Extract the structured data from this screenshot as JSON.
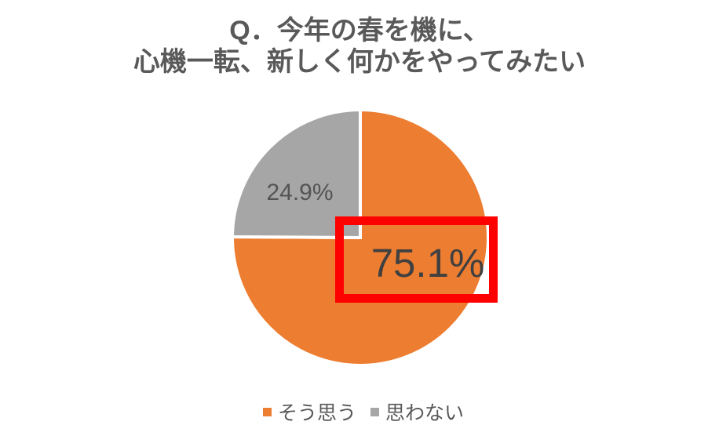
{
  "chart_data": {
    "type": "pie",
    "title": "Q．今年の春を機に、心機一転、新しく何かをやってみたい",
    "title_lines": [
      "Q．今年の春を機に、",
      "心機一転、新しく何かをやってみたい"
    ],
    "slices": [
      {
        "label": "そう思う",
        "value": 75.1,
        "data_label": "75.1%",
        "color": "#ED7D31"
      },
      {
        "label": "思わない",
        "value": 24.9,
        "data_label": "24.9%",
        "color": "#A6A6A6"
      }
    ],
    "start_angle_deg": 0,
    "direction": "clockwise",
    "legend_position": "bottom",
    "separator_color": "#FFFFFF",
    "highlight": {
      "shape": "rectangle",
      "border_color": "#FF0000",
      "highlights_label": "75.1%"
    }
  },
  "colors": {
    "background": "#FFFFFF",
    "title_text": "#595959",
    "data_label_agree": "#404040",
    "data_label_disagree": "#545454",
    "legend_text": "#595959"
  }
}
